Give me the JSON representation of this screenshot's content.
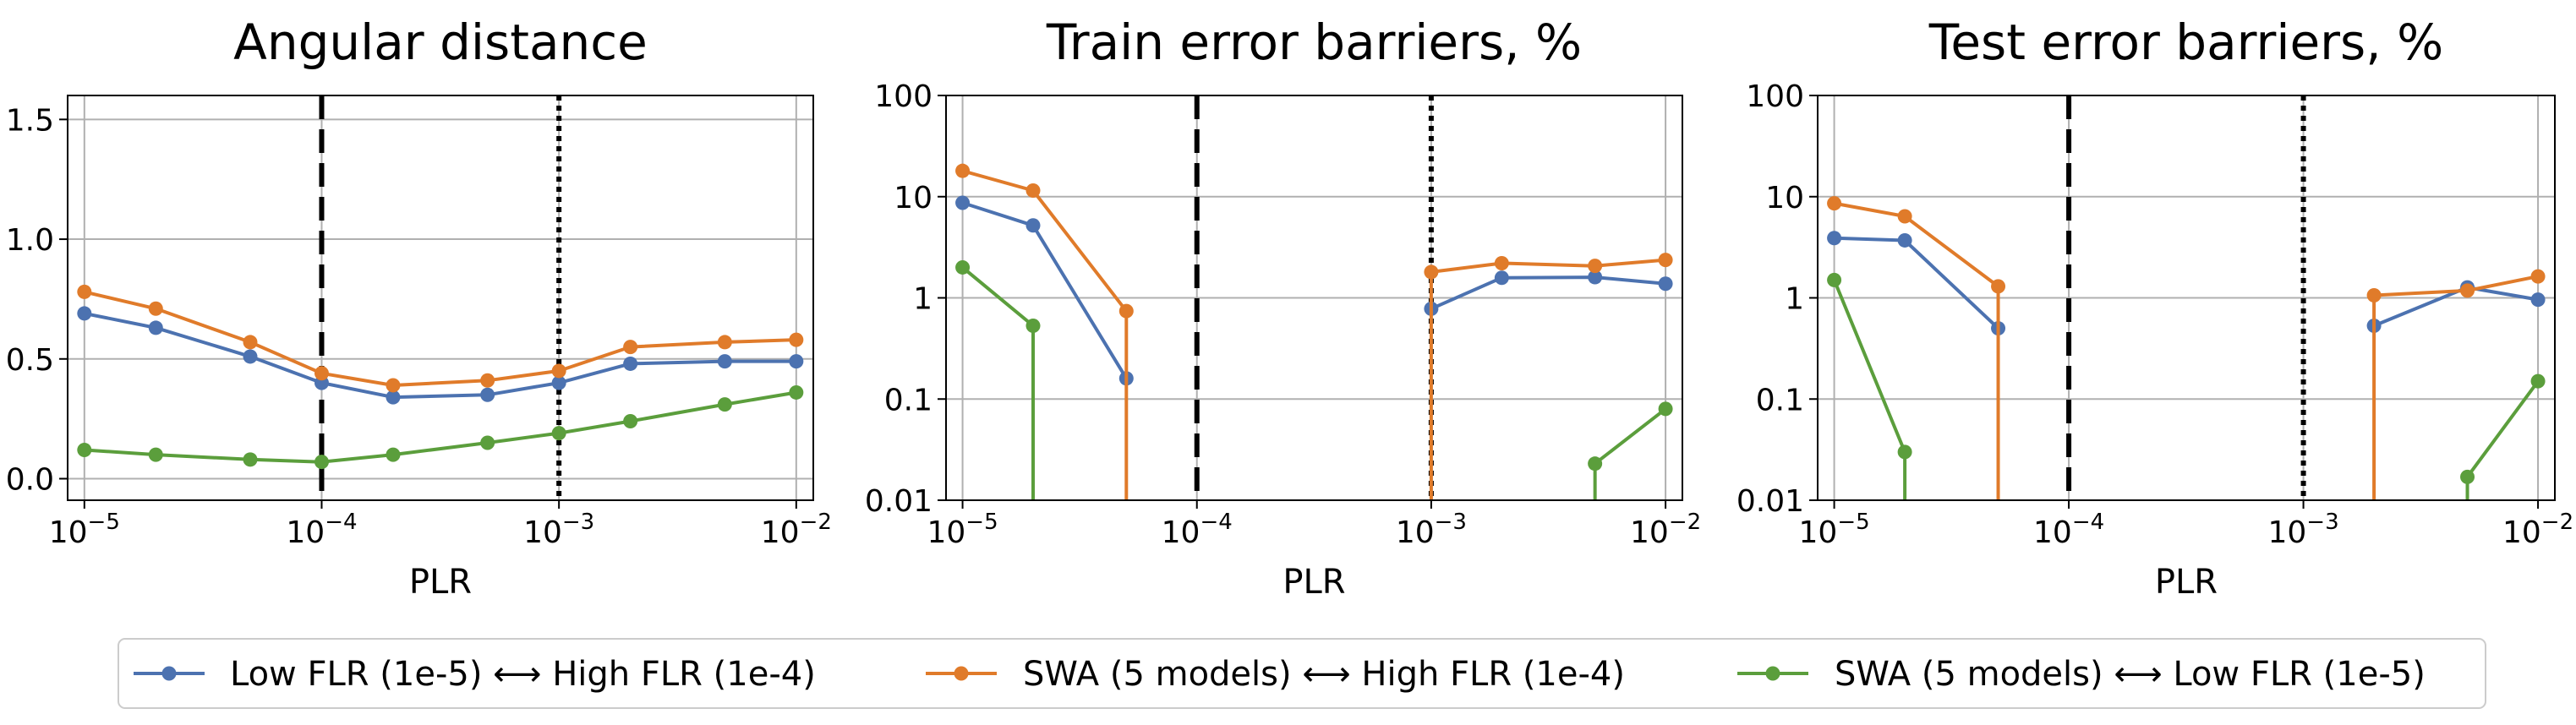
{
  "colors": {
    "blue": "#4c72b0",
    "orange": "#e07b2a",
    "green": "#5b9e3c",
    "grid": "#b0b0b0"
  },
  "series_meta": [
    {
      "key": "blue",
      "name": "Low FLR (1e-5) ⟷ High FLR (1e-4)"
    },
    {
      "key": "orange",
      "name": "SWA (5 models) ⟷ High FLR (1e-4)"
    },
    {
      "key": "green",
      "name": "SWA (5 models) ⟷ Low FLR (1e-5)"
    }
  ],
  "chart_data": [
    {
      "type": "line",
      "title": "Angular distance",
      "xlabel": "PLR",
      "xscale": "log",
      "yscale": "linear",
      "xlim": [
        8.5e-06,
        0.0118
      ],
      "ylim": [
        -0.09,
        1.6
      ],
      "xticks": [
        {
          "v": 1e-05,
          "base": "10",
          "exp": "−5"
        },
        {
          "v": 0.0001,
          "base": "10",
          "exp": "−4"
        },
        {
          "v": 0.001,
          "base": "10",
          "exp": "−3"
        },
        {
          "v": 0.01,
          "base": "10",
          "exp": "−2"
        }
      ],
      "yticks": [
        {
          "v": 0.0,
          "label": "0.0"
        },
        {
          "v": 0.5,
          "label": "0.5"
        },
        {
          "v": 1.0,
          "label": "1.0"
        },
        {
          "v": 1.5,
          "label": "1.5"
        }
      ],
      "vlines": [
        {
          "x": 0.0001,
          "style": "dashed"
        },
        {
          "x": 0.001,
          "style": "dotted"
        }
      ],
      "series": [
        {
          "name": "Low FLR (1e-5) ⟷ High FLR (1e-4)",
          "color": "blue",
          "x": [
            1e-05,
            2e-05,
            5e-05,
            0.0001,
            0.0002,
            0.0005,
            0.001,
            0.002,
            0.005,
            0.01
          ],
          "y": [
            0.69,
            0.63,
            0.51,
            0.4,
            0.34,
            0.35,
            0.4,
            0.48,
            0.49,
            0.49
          ]
        },
        {
          "name": "SWA (5 models) ⟷ High FLR (1e-4)",
          "color": "orange",
          "x": [
            1e-05,
            2e-05,
            5e-05,
            0.0001,
            0.0002,
            0.0005,
            0.001,
            0.002,
            0.005,
            0.01
          ],
          "y": [
            0.78,
            0.71,
            0.57,
            0.44,
            0.39,
            0.41,
            0.45,
            0.55,
            0.57,
            0.58
          ]
        },
        {
          "name": "SWA (5 models) ⟷ Low FLR (1e-5)",
          "color": "green",
          "x": [
            1e-05,
            2e-05,
            5e-05,
            0.0001,
            0.0002,
            0.0005,
            0.001,
            0.002,
            0.005,
            0.01
          ],
          "y": [
            0.12,
            0.1,
            0.08,
            0.07,
            0.1,
            0.15,
            0.19,
            0.24,
            0.31,
            0.36
          ]
        }
      ]
    },
    {
      "type": "line",
      "title": "Train error barriers, %",
      "xlabel": "PLR",
      "xscale": "log",
      "yscale": "log",
      "xlim": [
        8.5e-06,
        0.0118
      ],
      "ylim": [
        0.01,
        100
      ],
      "xticks": [
        {
          "v": 1e-05,
          "base": "10",
          "exp": "−5"
        },
        {
          "v": 0.0001,
          "base": "10",
          "exp": "−4"
        },
        {
          "v": 0.001,
          "base": "10",
          "exp": "−3"
        },
        {
          "v": 0.01,
          "base": "10",
          "exp": "−2"
        }
      ],
      "yticks": [
        {
          "v": 0.01,
          "label": "0.01"
        },
        {
          "v": 0.1,
          "label": "0.1"
        },
        {
          "v": 1,
          "label": "1"
        },
        {
          "v": 10,
          "label": "10"
        },
        {
          "v": 100,
          "label": "100"
        }
      ],
      "vlines": [
        {
          "x": 0.0001,
          "style": "dashed"
        },
        {
          "x": 0.001,
          "style": "dotted"
        }
      ],
      "series": [
        {
          "name": "Low FLR (1e-5) ⟷ High FLR (1e-4)",
          "color": "blue",
          "x": [
            1e-05,
            2e-05,
            5e-05,
            0.001,
            0.002,
            0.005,
            0.01
          ],
          "y": [
            8.7,
            5.2,
            0.16,
            0.78,
            1.58,
            1.6,
            1.38
          ],
          "segments": [
            [
              0,
              2
            ],
            [
              3,
              6
            ]
          ],
          "drops": []
        },
        {
          "name": "SWA (5 models) ⟷ High FLR (1e-4)",
          "color": "orange",
          "x": [
            1e-05,
            2e-05,
            5e-05,
            0.001,
            0.002,
            0.005,
            0.01
          ],
          "y": [
            18,
            11.5,
            0.74,
            1.8,
            2.2,
            2.07,
            2.37
          ],
          "segments": [
            [
              0,
              2
            ],
            [
              3,
              6
            ]
          ],
          "drops": [
            5e-05,
            0.001
          ]
        },
        {
          "name": "SWA (5 models) ⟷ Low FLR (1e-5)",
          "color": "green",
          "x": [
            1e-05,
            2e-05,
            0.005,
            0.01
          ],
          "y": [
            2.0,
            0.53,
            0.023,
            0.08
          ],
          "segments": [
            [
              0,
              1
            ],
            [
              2,
              3
            ]
          ],
          "drops": [
            2e-05,
            0.005
          ]
        }
      ]
    },
    {
      "type": "line",
      "title": "Test error barriers, %",
      "xlabel": "PLR",
      "xscale": "log",
      "yscale": "log",
      "xlim": [
        8.5e-06,
        0.0118
      ],
      "ylim": [
        0.01,
        100
      ],
      "xticks": [
        {
          "v": 1e-05,
          "base": "10",
          "exp": "−5"
        },
        {
          "v": 0.0001,
          "base": "10",
          "exp": "−4"
        },
        {
          "v": 0.001,
          "base": "10",
          "exp": "−3"
        },
        {
          "v": 0.01,
          "base": "10",
          "exp": "−2"
        }
      ],
      "yticks": [
        {
          "v": 0.01,
          "label": "0.01"
        },
        {
          "v": 0.1,
          "label": "0.1"
        },
        {
          "v": 1,
          "label": "1"
        },
        {
          "v": 10,
          "label": "10"
        },
        {
          "v": 100,
          "label": "100"
        }
      ],
      "vlines": [
        {
          "x": 0.0001,
          "style": "dashed"
        },
        {
          "x": 0.001,
          "style": "dotted"
        }
      ],
      "series": [
        {
          "name": "Low FLR (1e-5) ⟷ High FLR (1e-4)",
          "color": "blue",
          "x": [
            1e-05,
            2e-05,
            5e-05,
            0.002,
            0.005,
            0.01
          ],
          "y": [
            3.9,
            3.7,
            0.5,
            0.53,
            1.27,
            0.96
          ],
          "segments": [
            [
              0,
              2
            ],
            [
              3,
              5
            ]
          ],
          "drops": []
        },
        {
          "name": "SWA (5 models) ⟷ High FLR (1e-4)",
          "color": "orange",
          "x": [
            1e-05,
            2e-05,
            5e-05,
            0.002,
            0.005,
            0.01
          ],
          "y": [
            8.6,
            6.4,
            1.3,
            1.06,
            1.18,
            1.63
          ],
          "segments": [
            [
              0,
              2
            ],
            [
              3,
              5
            ]
          ],
          "drops": [
            5e-05,
            0.002
          ]
        },
        {
          "name": "SWA (5 models) ⟷ Low FLR (1e-5)",
          "color": "green",
          "x": [
            1e-05,
            2e-05,
            0.005,
            0.01
          ],
          "y": [
            1.5,
            0.03,
            0.017,
            0.15
          ],
          "segments": [
            [
              0,
              1
            ],
            [
              2,
              3
            ]
          ],
          "drops": [
            2e-05,
            0.005
          ]
        }
      ]
    }
  ]
}
